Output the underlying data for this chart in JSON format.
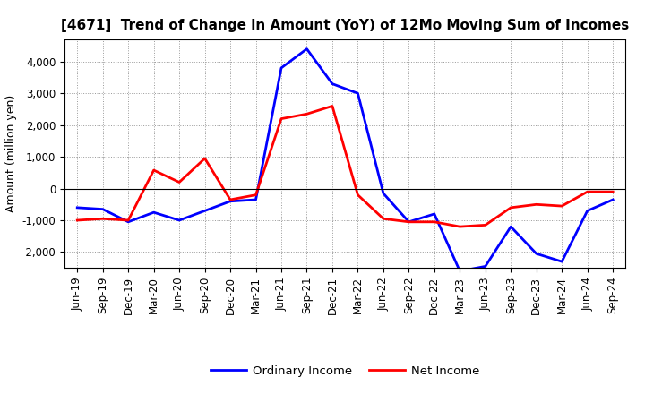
{
  "title": "[4671]  Trend of Change in Amount (YoY) of 12Mo Moving Sum of Incomes",
  "ylabel": "Amount (million yen)",
  "x_labels": [
    "Jun-19",
    "Sep-19",
    "Dec-19",
    "Mar-20",
    "Jun-20",
    "Sep-20",
    "Dec-20",
    "Mar-21",
    "Jun-21",
    "Sep-21",
    "Dec-21",
    "Mar-22",
    "Jun-22",
    "Sep-22",
    "Dec-22",
    "Mar-23",
    "Jun-23",
    "Sep-23",
    "Dec-23",
    "Mar-24",
    "Jun-24",
    "Sep-24"
  ],
  "ordinary_income": [
    -600,
    -650,
    -1050,
    -750,
    -1000,
    -700,
    -400,
    -350,
    3800,
    4400,
    3300,
    3000,
    -150,
    -1050,
    -800,
    -2600,
    -2450,
    -1200,
    -2050,
    -2300,
    -700,
    -350
  ],
  "net_income": [
    -1000,
    -950,
    -1000,
    580,
    200,
    950,
    -350,
    -200,
    2200,
    2350,
    2600,
    -200,
    -950,
    -1050,
    -1050,
    -1200,
    -1150,
    -600,
    -500,
    -550,
    -100,
    -100
  ],
  "ordinary_color": "#0000FF",
  "net_color": "#FF0000",
  "background_color": "#FFFFFF",
  "plot_bg_color": "#FFFFFF",
  "grid_color": "#999999",
  "ylim": [
    -2500,
    4700
  ],
  "yticks": [
    -2000,
    -1000,
    0,
    1000,
    2000,
    3000,
    4000
  ],
  "legend_labels": [
    "Ordinary Income",
    "Net Income"
  ],
  "line_width": 2.0,
  "title_fontsize": 11,
  "axis_fontsize": 8.5,
  "ylabel_fontsize": 9
}
